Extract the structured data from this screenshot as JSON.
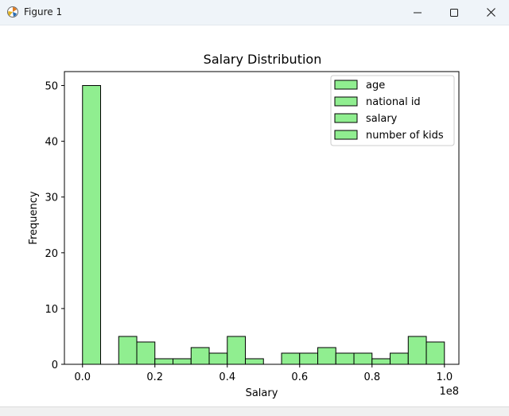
{
  "window": {
    "title": "Figure 1",
    "controls": [
      "minimize-icon",
      "maximize-icon",
      "close-icon"
    ]
  },
  "colors": {
    "bar_fill": "#90ee90",
    "bar_edge": "#000000",
    "titlebar_bg": "#eff4f9"
  },
  "chart_data": {
    "type": "bar",
    "title": "Salary Distribution",
    "xlabel": "Salary",
    "ylabel": "Frequency",
    "x_offset_label": "1e8",
    "xlim": [
      -0.05,
      1.04
    ],
    "ylim": [
      0,
      52.5
    ],
    "x_ticks": [
      0.0,
      0.2,
      0.4,
      0.6,
      0.8,
      1.0
    ],
    "x_tick_labels": [
      "0.0",
      "0.2",
      "0.4",
      "0.6",
      "0.8",
      "1.0"
    ],
    "y_ticks": [
      0,
      10,
      20,
      30,
      40,
      50
    ],
    "y_tick_labels": [
      "0",
      "10",
      "20",
      "30",
      "40",
      "50"
    ],
    "bin_width": 0.05,
    "bin_starts": [
      0.0,
      0.05,
      0.1,
      0.15,
      0.2,
      0.25,
      0.3,
      0.35,
      0.4,
      0.45,
      0.5,
      0.55,
      0.6,
      0.65,
      0.7,
      0.75,
      0.8,
      0.85,
      0.9,
      0.95
    ],
    "values": [
      50,
      0,
      5,
      4,
      1,
      1,
      3,
      2,
      5,
      1,
      0,
      2,
      2,
      3,
      2,
      2,
      1,
      2,
      5,
      4
    ],
    "legend": {
      "position": "upper right",
      "entries": [
        "age",
        "national id",
        "salary",
        "number of kids"
      ]
    },
    "grid": false
  }
}
